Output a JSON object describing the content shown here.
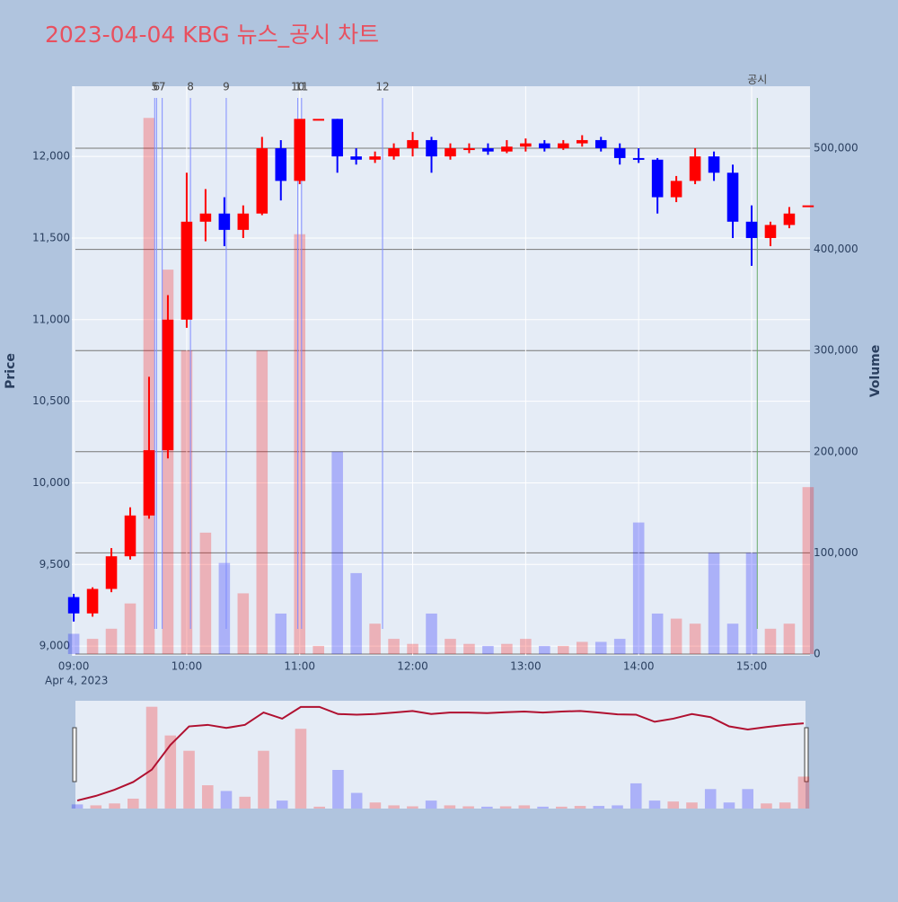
{
  "chart_data": {
    "type": "candlestick",
    "title": "2023-04-04 KBG 뉴스_공시 차트",
    "y_label": "Price",
    "y2_label": "Volume",
    "x_sublabel": "Apr 4, 2023",
    "increasing_color": "#ff0000",
    "decreasing_color": "#0000ff",
    "x": [
      "09:00",
      "09:10",
      "09:20",
      "09:30",
      "09:40",
      "09:50",
      "10:00",
      "10:10",
      "10:20",
      "10:30",
      "10:40",
      "10:50",
      "11:00",
      "11:10",
      "11:20",
      "11:30",
      "11:40",
      "11:50",
      "12:00",
      "12:10",
      "12:20",
      "12:30",
      "12:40",
      "12:50",
      "13:00",
      "13:10",
      "13:20",
      "13:30",
      "13:40",
      "13:50",
      "14:00",
      "14:10",
      "14:20",
      "14:30",
      "14:40",
      "14:50",
      "15:00",
      "15:10",
      "15:20",
      "15:30"
    ],
    "open": [
      9300,
      9200,
      9350,
      9550,
      9800,
      10200,
      11000,
      11600,
      11650,
      11550,
      11650,
      12050,
      11850,
      12230,
      12230,
      12000,
      11980,
      12000,
      12050,
      12100,
      12000,
      12050,
      12050,
      12030,
      12060,
      12080,
      12050,
      12080,
      12100,
      12050,
      11990,
      11980,
      11750,
      11850,
      12000,
      11900,
      11600,
      11500,
      11580,
      11700
    ],
    "high": [
      9320,
      9360,
      9600,
      9850,
      10650,
      11150,
      11900,
      11800,
      11750,
      11700,
      12120,
      12100,
      12230,
      12230,
      12230,
      12050,
      12030,
      12080,
      12150,
      12120,
      12080,
      12080,
      12080,
      12100,
      12110,
      12100,
      12100,
      12130,
      12120,
      12080,
      12050,
      11990,
      11880,
      12050,
      12030,
      11950,
      11700,
      11600,
      11690,
      11700
    ],
    "low": [
      9150,
      9180,
      9330,
      9530,
      9780,
      10150,
      10950,
      11480,
      11450,
      11500,
      11640,
      11730,
      11830,
      12230,
      11900,
      11950,
      11960,
      11980,
      12000,
      11900,
      11980,
      12020,
      12010,
      12020,
      12030,
      12030,
      12040,
      12060,
      12030,
      11950,
      11960,
      11650,
      11720,
      11830,
      11850,
      11500,
      11330,
      11450,
      11560,
      11700
    ],
    "close": [
      9200,
      9350,
      9550,
      9800,
      10200,
      11000,
      11600,
      11650,
      11550,
      11650,
      12050,
      11850,
      12230,
      12230,
      12000,
      11980,
      12000,
      12050,
      12100,
      12000,
      12050,
      12050,
      12030,
      12060,
      12080,
      12050,
      12080,
      12100,
      12050,
      11990,
      11980,
      11750,
      11850,
      12000,
      11900,
      11600,
      11500,
      11580,
      11650,
      11700
    ],
    "volume": [
      20000,
      15000,
      25000,
      50000,
      530000,
      380000,
      300000,
      120000,
      90000,
      60000,
      300000,
      40000,
      415000,
      8000,
      200000,
      80000,
      30000,
      15000,
      10000,
      40000,
      15000,
      10000,
      8000,
      10000,
      15000,
      8000,
      8000,
      12000,
      12000,
      15000,
      130000,
      40000,
      35000,
      30000,
      100000,
      30000,
      100000,
      25000,
      30000,
      165000
    ],
    "xlim": [
      "08:59",
      "15:31"
    ],
    "xticks": [
      "09:00",
      "10:00",
      "11:00",
      "12:00",
      "13:00",
      "14:00",
      "15:00"
    ],
    "ylim": [
      8940,
      12430
    ],
    "yticks": [
      {
        "value": 9000,
        "label": "9,000"
      },
      {
        "value": 9500,
        "label": "9,500"
      },
      {
        "value": 10000,
        "label": "10,000"
      },
      {
        "value": 10500,
        "label": "10,500"
      },
      {
        "value": 11000,
        "label": "11,000"
      },
      {
        "value": 11500,
        "label": "11,500"
      },
      {
        "value": 12000,
        "label": "12,000"
      }
    ],
    "y2lim": [
      -1800,
      561300
    ],
    "y2ticks": [
      0,
      {
        "value": 100000,
        "label": "100,000"
      },
      {
        "value": 200000,
        "label": "200,000"
      },
      {
        "value": 300000,
        "label": "300,000"
      },
      {
        "value": 400000,
        "label": "400,000"
      },
      {
        "value": 500000,
        "label": "500,000"
      }
    ],
    "events": [
      {
        "x": "09:43",
        "label": "5",
        "color": "#7f8cff"
      },
      {
        "x": "09:44",
        "label": "6",
        "color": "#7f8cff"
      },
      {
        "x": "09:47",
        "label": "7",
        "color": "#7f8cff"
      },
      {
        "x": "10:02",
        "label": "8",
        "color": "#7f8cff"
      },
      {
        "x": "10:21",
        "label": "9",
        "color": "#7f8cff"
      },
      {
        "x": "10:59",
        "label": "10",
        "color": "#7f8cff"
      },
      {
        "x": "11:01",
        "label": "11",
        "color": "#7f8cff"
      },
      {
        "x": "11:44",
        "label": "12",
        "color": "#7f8cff"
      },
      {
        "x": "15:03",
        "label": "공시",
        "color": "#6aaa6a"
      }
    ]
  }
}
